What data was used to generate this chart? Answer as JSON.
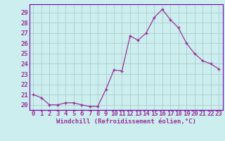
{
  "x": [
    0,
    1,
    2,
    3,
    4,
    5,
    6,
    7,
    8,
    9,
    10,
    11,
    12,
    13,
    14,
    15,
    16,
    17,
    18,
    19,
    20,
    21,
    22,
    23
  ],
  "y": [
    21.0,
    20.7,
    20.0,
    20.0,
    20.2,
    20.2,
    20.0,
    19.85,
    19.85,
    21.5,
    23.4,
    23.3,
    26.7,
    26.3,
    27.0,
    28.5,
    29.3,
    28.3,
    27.5,
    26.0,
    25.0,
    24.3,
    24.0,
    23.5
  ],
  "line_color": "#993399",
  "marker": "+",
  "bg_color": "#cceeee",
  "grid_color": "#aacccc",
  "xlabel": "Windchill (Refroidissement éolien,°C)",
  "ylabel_ticks": [
    20,
    21,
    22,
    23,
    24,
    25,
    26,
    27,
    28,
    29
  ],
  "ylim": [
    19.5,
    29.8
  ],
  "xlim": [
    -0.5,
    23.5
  ],
  "label_color": "#993399",
  "xlabel_fontsize": 6.5,
  "tick_fontsize": 6.5,
  "border_color": "#7700aa"
}
